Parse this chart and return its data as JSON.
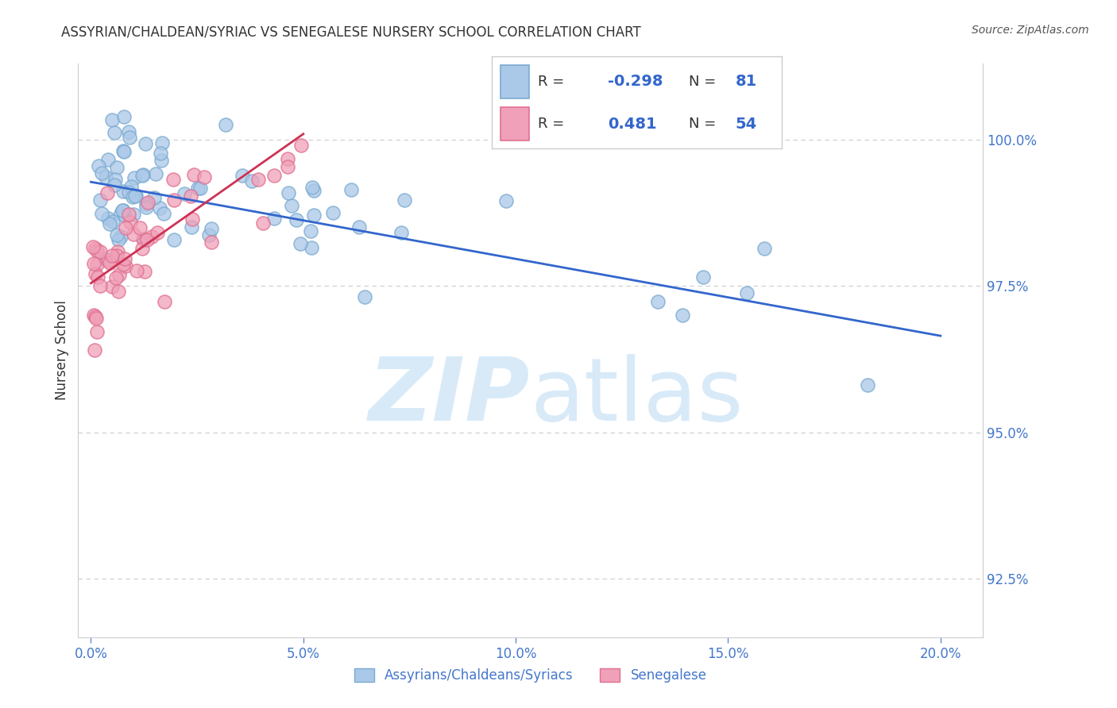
{
  "title": "ASSYRIAN/CHALDEAN/SYRIAC VS SENEGALESE NURSERY SCHOOL CORRELATION CHART",
  "source": "Source: ZipAtlas.com",
  "xlabel_ticks": [
    "0.0%",
    "5.0%",
    "10.0%",
    "15.0%",
    "20.0%"
  ],
  "xlabel_values": [
    0.0,
    5.0,
    10.0,
    15.0,
    20.0
  ],
  "ylabel": "Nursery School",
  "ylabel_ticks": [
    "92.5%",
    "95.0%",
    "97.5%",
    "100.0%"
  ],
  "ylabel_values": [
    92.5,
    95.0,
    97.5,
    100.0
  ],
  "xlim": [
    -0.3,
    21.0
  ],
  "ylim": [
    91.5,
    101.3
  ],
  "blue_label": "Assyrians/Chaldeans/Syriacs",
  "pink_label": "Senegalese",
  "blue_r": -0.298,
  "blue_n": 81,
  "pink_r": 0.481,
  "pink_n": 54,
  "blue_color": "#aac8e8",
  "pink_color": "#f0a0b8",
  "blue_edge_color": "#7aaad0",
  "pink_edge_color": "#e07090",
  "blue_line_color": "#3366cc",
  "pink_line_color": "#cc3355",
  "watermark_color": "#d8eaf8",
  "legend_bg": "white",
  "legend_border": "#cccccc",
  "grid_color": "#cccccc",
  "tick_color": "#4477cc",
  "title_color": "#333333",
  "source_color": "#555555",
  "ylabel_color": "#333333",
  "blue_line_x0": 0.0,
  "blue_line_x1": 20.0,
  "blue_line_y0": 99.28,
  "blue_line_y1": 96.65,
  "pink_line_x0": 0.0,
  "pink_line_x1": 5.0,
  "pink_line_y0": 97.55,
  "pink_line_y1": 100.1
}
